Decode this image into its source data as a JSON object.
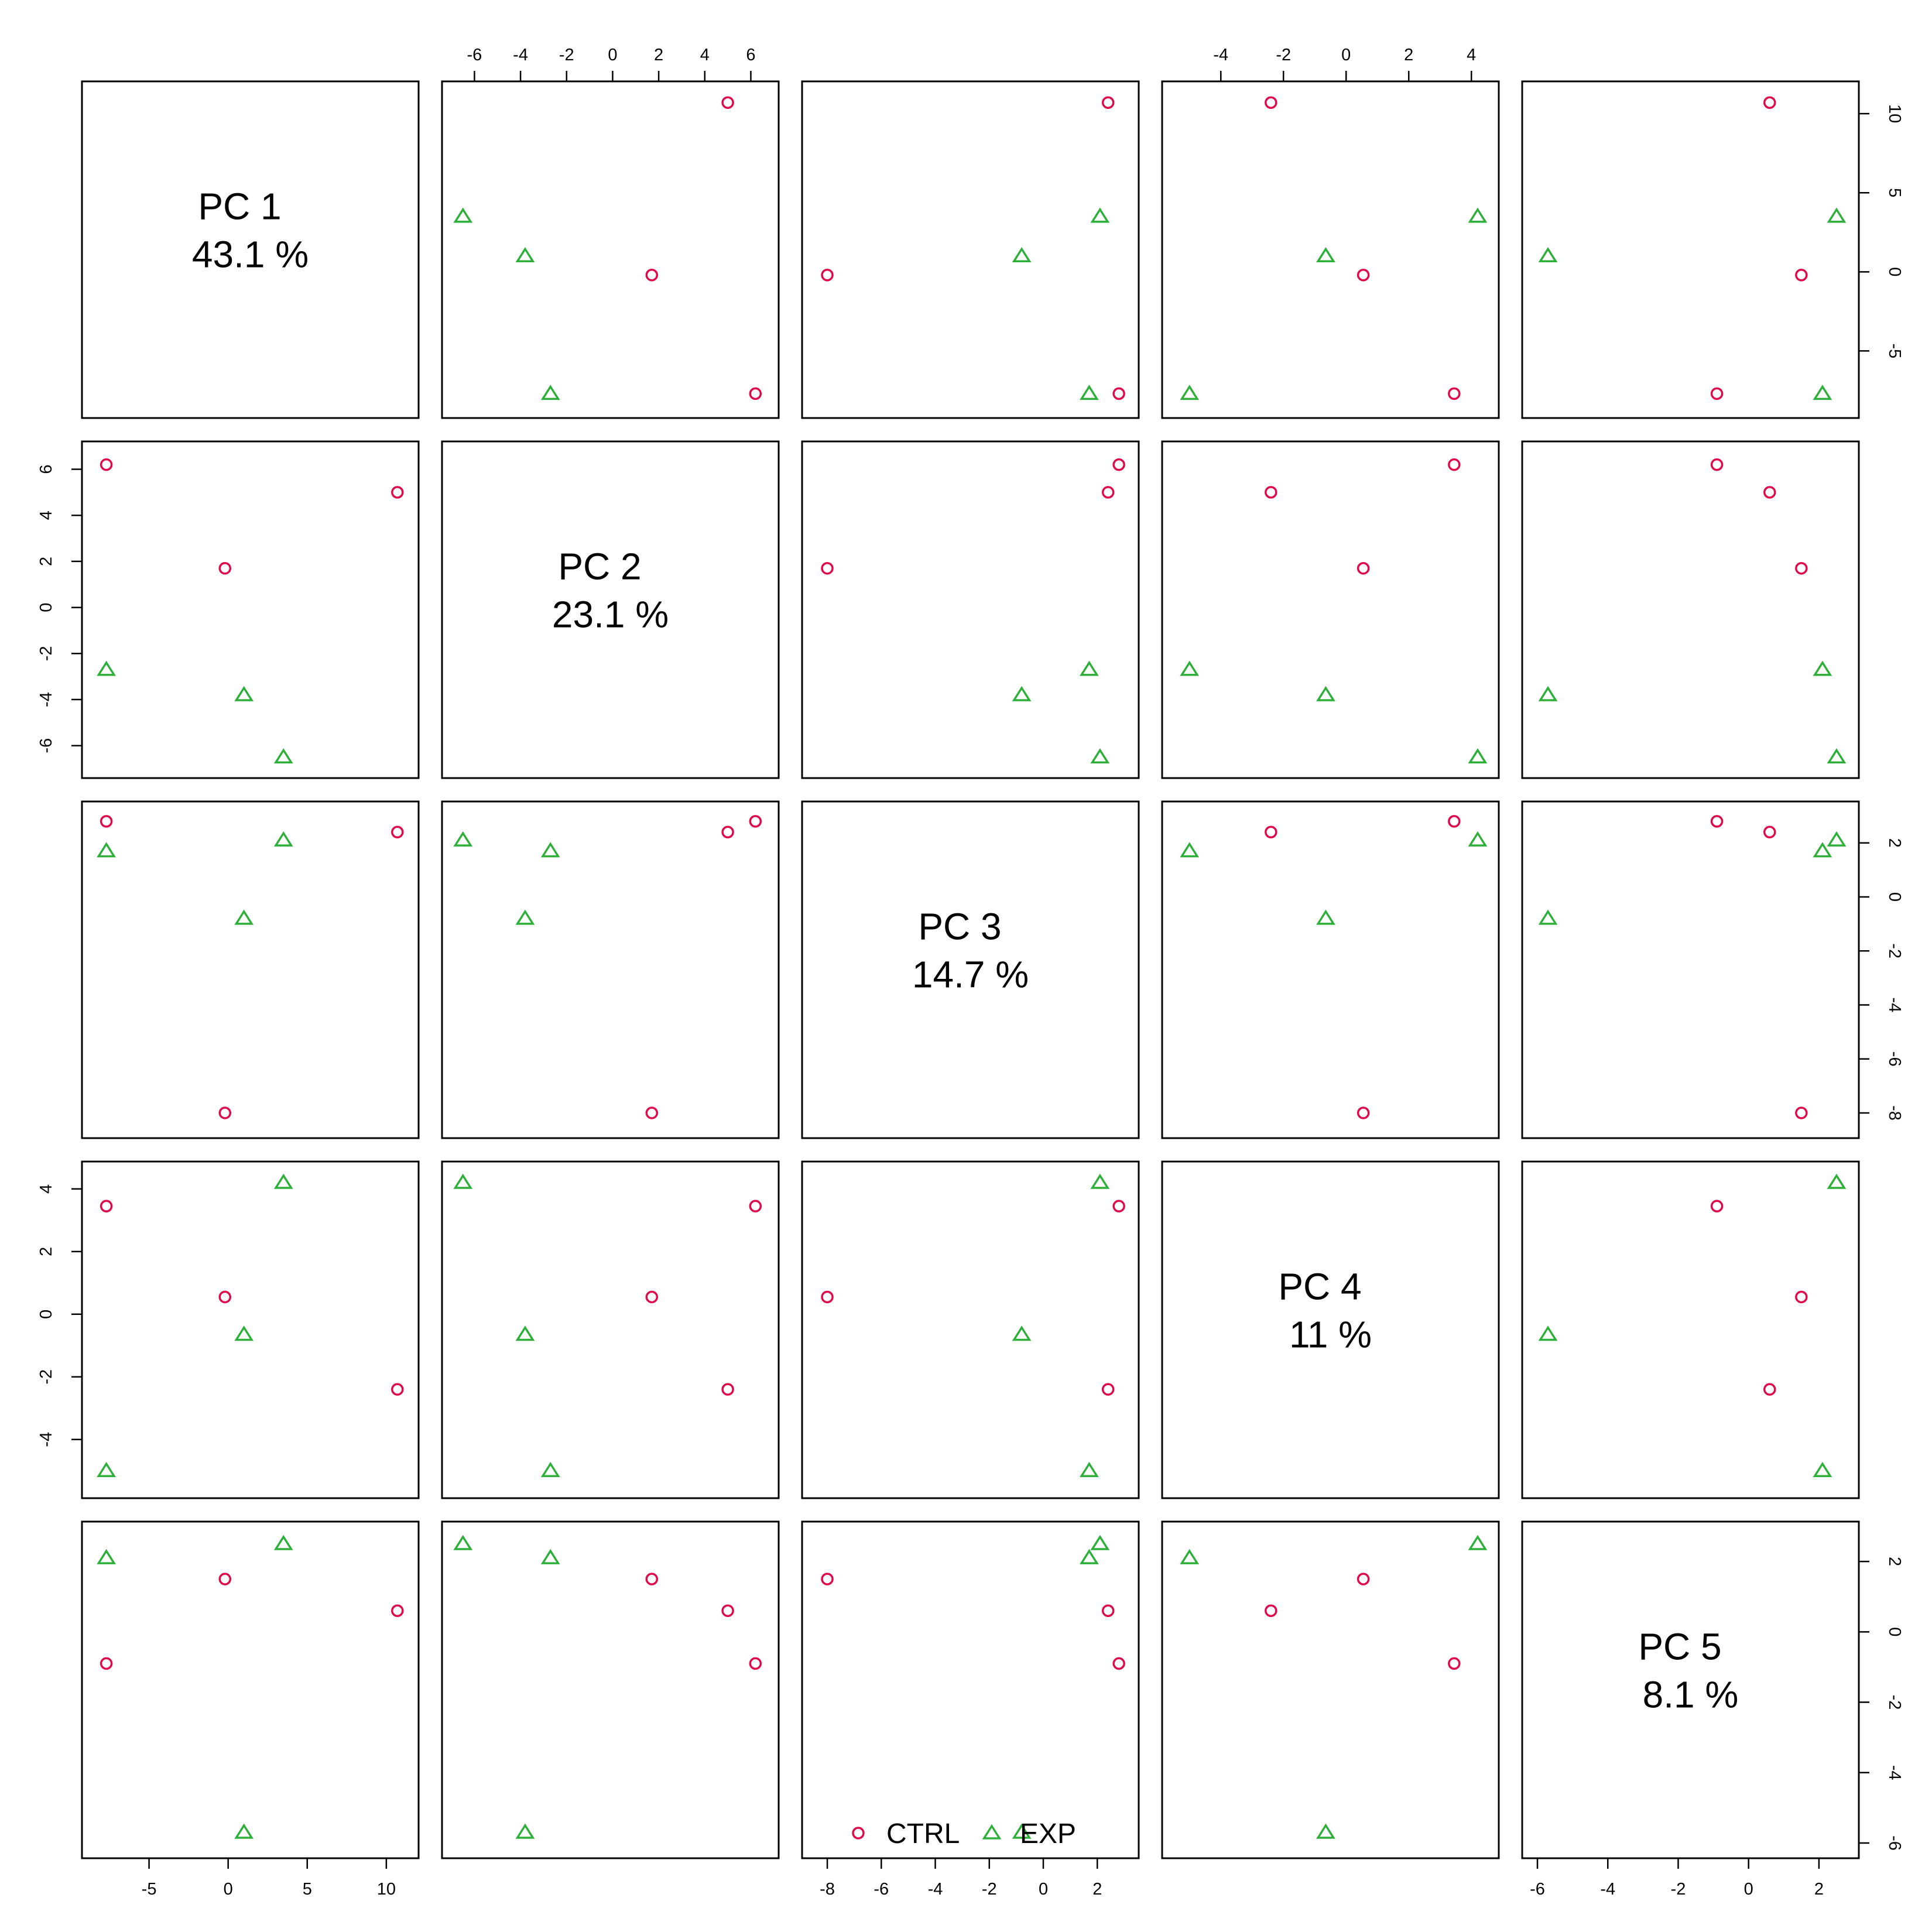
{
  "chart_data": {
    "type": "scatter",
    "kind": "pairs-plot",
    "variables": [
      {
        "name": "PC 1",
        "percent": "43.1 %",
        "range": [
          -8.5,
          11.3
        ],
        "ticks": [
          -5,
          0,
          5,
          10
        ]
      },
      {
        "name": "PC 2",
        "percent": "23.1 %",
        "range": [
          -6.9,
          6.7
        ],
        "ticks": [
          -6,
          -4,
          -2,
          0,
          2,
          4,
          6
        ]
      },
      {
        "name": "PC 3",
        "percent": "14.7 %",
        "range": [
          -8.5,
          3.1
        ],
        "ticks": [
          -8,
          -6,
          -4,
          -2,
          0,
          2
        ]
      },
      {
        "name": "PC 4",
        "percent": "11 %",
        "range": [
          -5.5,
          4.5
        ],
        "ticks": [
          -4,
          -2,
          0,
          2,
          4
        ]
      },
      {
        "name": "PC 5",
        "percent": "8.1 %",
        "range": [
          -6.1,
          2.8
        ],
        "ticks": [
          -6,
          -4,
          -2,
          0,
          2
        ]
      }
    ],
    "groups": [
      {
        "name": "CTRL",
        "color": "#DF0A4B",
        "marker": "circle"
      },
      {
        "name": "EXP",
        "color": "#2EAF3A",
        "marker": "triangle"
      }
    ],
    "points": [
      {
        "group": "CTRL",
        "values": [
          10.7,
          5.0,
          2.4,
          -2.4,
          0.6
        ]
      },
      {
        "group": "CTRL",
        "values": [
          -0.2,
          1.7,
          -8.0,
          0.55,
          1.5
        ]
      },
      {
        "group": "CTRL",
        "values": [
          -7.7,
          6.2,
          2.8,
          3.45,
          -0.9
        ]
      },
      {
        "group": "EXP",
        "values": [
          3.5,
          -6.5,
          2.1,
          4.2,
          2.5
        ]
      },
      {
        "group": "EXP",
        "values": [
          1.0,
          -3.8,
          -0.8,
          -0.65,
          -5.7
        ]
      },
      {
        "group": "EXP",
        "values": [
          -7.7,
          -2.7,
          1.7,
          -5.0,
          2.1
        ]
      }
    ],
    "grid": false,
    "legend_position": "bottom-center"
  }
}
